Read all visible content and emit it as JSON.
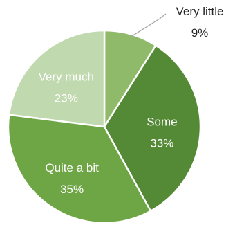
{
  "chart_data": {
    "type": "pie",
    "title": "",
    "slices": [
      {
        "label": "Very little",
        "value": 9,
        "percent_label": "9%",
        "color": "#8fba6a"
      },
      {
        "label": "Some",
        "value": 33,
        "percent_label": "33%",
        "color": "#548a36"
      },
      {
        "label": "Quite a bit",
        "value": 35,
        "percent_label": "35%",
        "color": "#6fa645"
      },
      {
        "label": "Very much",
        "value": 23,
        "percent_label": "23%",
        "color": "#c0d9ae"
      }
    ],
    "start_angle_deg": 0,
    "direction": "clockwise",
    "legend": "none"
  }
}
